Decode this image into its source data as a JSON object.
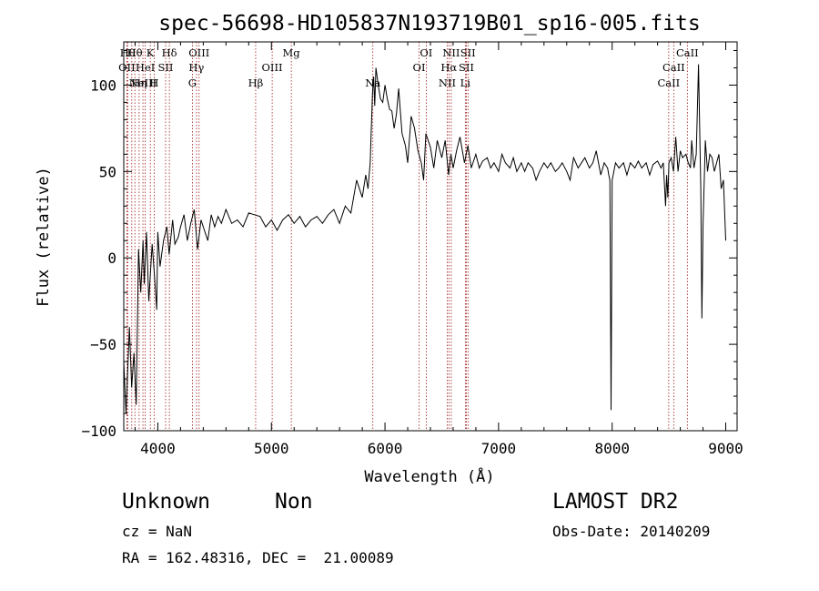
{
  "chart_data": {
    "type": "line",
    "title": "spec-56698-HD105837N193719B01_sp16-005.fits",
    "xlabel": "Wavelength (Å)",
    "ylabel": "Flux (relative)",
    "xlim": [
      3700,
      9100
    ],
    "ylim": [
      -100,
      125
    ],
    "xticks": [
      4000,
      5000,
      6000,
      7000,
      8000,
      9000
    ],
    "yticks": [
      -100,
      -50,
      0,
      50,
      100
    ],
    "xtick_labels": [
      "4000",
      "5000",
      "6000",
      "7000",
      "8000",
      "9000"
    ],
    "ytick_labels": [
      "−100",
      "−50",
      "0",
      "50",
      "100"
    ],
    "series": [
      {
        "color": "#000000",
        "x": [
          3700,
          3720,
          3750,
          3770,
          3790,
          3810,
          3830,
          3850,
          3870,
          3880,
          3900,
          3920,
          3950,
          3970,
          3990,
          4000,
          4020,
          4050,
          4080,
          4100,
          4130,
          4150,
          4180,
          4200,
          4230,
          4260,
          4290,
          4320,
          4350,
          4380,
          4410,
          4440,
          4470,
          4500,
          4530,
          4560,
          4600,
          4650,
          4700,
          4750,
          4800,
          4850,
          4900,
          4950,
          5000,
          5050,
          5100,
          5150,
          5200,
          5250,
          5300,
          5350,
          5400,
          5450,
          5500,
          5550,
          5600,
          5650,
          5700,
          5750,
          5800,
          5830,
          5850,
          5870,
          5890,
          5900,
          5910,
          5920,
          5940,
          5960,
          5980,
          6000,
          6020,
          6040,
          6060,
          6080,
          6100,
          6120,
          6150,
          6180,
          6200,
          6230,
          6260,
          6290,
          6320,
          6340,
          6360,
          6400,
          6430,
          6460,
          6500,
          6530,
          6560,
          6580,
          6600,
          6630,
          6660,
          6700,
          6730,
          6760,
          6800,
          6830,
          6860,
          6900,
          6930,
          6960,
          7000,
          7030,
          7060,
          7100,
          7130,
          7160,
          7200,
          7230,
          7260,
          7300,
          7330,
          7360,
          7400,
          7430,
          7460,
          7500,
          7530,
          7560,
          7600,
          7630,
          7660,
          7700,
          7730,
          7760,
          7800,
          7830,
          7860,
          7900,
          7930,
          7960,
          7970,
          7980,
          7990,
          8000,
          8030,
          8060,
          8100,
          8130,
          8160,
          8200,
          8230,
          8260,
          8300,
          8330,
          8360,
          8400,
          8430,
          8450,
          8470,
          8480,
          8490,
          8500,
          8520,
          8540,
          8560,
          8580,
          8600,
          8620,
          8650,
          8670,
          8690,
          8700,
          8720,
          8740,
          8760,
          8780,
          8790,
          8800,
          8820,
          8840,
          8860,
          8880,
          8900,
          8920,
          8940,
          8960,
          8980,
          9000
        ],
        "y": [
          -60,
          -90,
          -40,
          -75,
          -55,
          -85,
          5,
          -20,
          10,
          -15,
          15,
          -25,
          8,
          -10,
          -30,
          15,
          -5,
          10,
          18,
          2,
          22,
          8,
          12,
          18,
          25,
          10,
          20,
          28,
          5,
          22,
          16,
          10,
          25,
          18,
          24,
          20,
          28,
          20,
          22,
          18,
          26,
          25,
          24,
          18,
          22,
          16,
          22,
          25,
          20,
          24,
          18,
          22,
          24,
          20,
          25,
          28,
          20,
          30,
          26,
          45,
          35,
          48,
          40,
          55,
          95,
          105,
          88,
          110,
          100,
          92,
          90,
          100,
          92,
          86,
          85,
          75,
          83,
          98,
          72,
          65,
          55,
          82,
          75,
          62,
          55,
          45,
          72,
          64,
          52,
          68,
          58,
          68,
          48,
          60,
          52,
          62,
          70,
          55,
          65,
          52,
          60,
          52,
          56,
          58,
          52,
          55,
          50,
          60,
          55,
          52,
          58,
          50,
          55,
          50,
          55,
          52,
          45,
          50,
          55,
          52,
          55,
          50,
          52,
          55,
          50,
          45,
          58,
          52,
          55,
          58,
          52,
          55,
          62,
          48,
          55,
          52,
          48,
          45,
          -88,
          45,
          55,
          52,
          55,
          48,
          55,
          52,
          56,
          52,
          55,
          48,
          54,
          56,
          52,
          55,
          30,
          48,
          35,
          55,
          58,
          50,
          70,
          50,
          62,
          58,
          60,
          55,
          52,
          68,
          52,
          60,
          112,
          40,
          -35,
          20,
          68,
          50,
          60,
          58,
          50,
          55,
          60,
          40,
          45,
          10
        ]
      }
    ],
    "lines": [
      {
        "x": 3734.4,
        "label": "Hθ"
      },
      {
        "x": 3727.1,
        "label": "OII"
      },
      {
        "x": 3770.6,
        "label": "Hη"
      },
      {
        "x": 3797.9,
        "label": "Hθ"
      },
      {
        "x": 3835.4,
        "label": "Hη"
      },
      {
        "x": 3868.7,
        "label": "NeIII"
      },
      {
        "x": 3889.1,
        "label": "HeI"
      },
      {
        "x": 3933.7,
        "label": "K"
      },
      {
        "x": 3968.5,
        "label": "H"
      },
      {
        "x": 4101.7,
        "label": "Hδ"
      },
      {
        "x": 4068.6,
        "label": "SII"
      },
      {
        "x": 4304.4,
        "label": "G"
      },
      {
        "x": 4340.5,
        "label": "Hγ"
      },
      {
        "x": 4363.2,
        "label": "OIII"
      },
      {
        "x": 4861.3,
        "label": "Hβ"
      },
      {
        "x": 5006.8,
        "label": "OIII"
      },
      {
        "x": 5175.4,
        "label": "Mg"
      },
      {
        "x": 5893.0,
        "label": "Na"
      },
      {
        "x": 6300.3,
        "label": "OI"
      },
      {
        "x": 6363.8,
        "label": "OI"
      },
      {
        "x": 6548.1,
        "label": "NII"
      },
      {
        "x": 6562.8,
        "label": "Hα"
      },
      {
        "x": 6583.4,
        "label": "NII"
      },
      {
        "x": 6707.8,
        "label": "Li"
      },
      {
        "x": 6716.4,
        "label": "SII"
      },
      {
        "x": 6730.8,
        "label": "SII"
      },
      {
        "x": 8498.0,
        "label": "CaII"
      },
      {
        "x": 8542.1,
        "label": "CaII"
      },
      {
        "x": 8662.1,
        "label": "CaII"
      }
    ],
    "line_color": "#a01818",
    "line_labels": [
      {
        "text": "Hθ",
        "x": 3734,
        "row": 1
      },
      {
        "text": "OII",
        "x": 3727,
        "row": 2
      },
      {
        "text": "Hθ",
        "x": 3797,
        "row": 1
      },
      {
        "text": "NeIII",
        "x": 3868,
        "row": 3
      },
      {
        "text": "Hη",
        "x": 3835,
        "row": 3
      },
      {
        "text": "HeI",
        "x": 3889,
        "row": 2
      },
      {
        "text": "K",
        "x": 3933,
        "row": 1
      },
      {
        "text": "SII",
        "x": 4068,
        "row": 2
      },
      {
        "text": "H",
        "x": 3968,
        "row": 3
      },
      {
        "text": "Hδ",
        "x": 4101,
        "row": 1
      },
      {
        "text": "OIII",
        "x": 4363,
        "row": 1
      },
      {
        "text": "Hγ",
        "x": 4340,
        "row": 2
      },
      {
        "text": "G",
        "x": 4304,
        "row": 3
      },
      {
        "text": "Mg",
        "x": 5175,
        "row": 1
      },
      {
        "text": "OIII",
        "x": 5006,
        "row": 2
      },
      {
        "text": "Hβ",
        "x": 4861,
        "row": 3
      },
      {
        "text": "Na",
        "x": 5893,
        "row": 3
      },
      {
        "text": "OI",
        "x": 6363,
        "row": 1
      },
      {
        "text": "OI",
        "x": 6300,
        "row": 2
      },
      {
        "text": "NII",
        "x": 6583,
        "row": 1
      },
      {
        "text": "SII",
        "x": 6730,
        "row": 1
      },
      {
        "text": "Hα",
        "x": 6562,
        "row": 2
      },
      {
        "text": "SII",
        "x": 6716,
        "row": 2
      },
      {
        "text": "NII",
        "x": 6548,
        "row": 3
      },
      {
        "text": "Li",
        "x": 6707,
        "row": 3
      },
      {
        "text": "CaII",
        "x": 8662,
        "row": 1
      },
      {
        "text": "CaII",
        "x": 8542,
        "row": 2
      },
      {
        "text": "CaII",
        "x": 8498,
        "row": 3
      }
    ]
  },
  "info": {
    "object_class": "Unknown",
    "subclass": "Non",
    "survey": "LAMOST DR2",
    "redshift": "cz = NaN",
    "obs_date": "Obs-Date: 20140209",
    "coords": "RA = 162.48316, DEC =  21.00089"
  }
}
